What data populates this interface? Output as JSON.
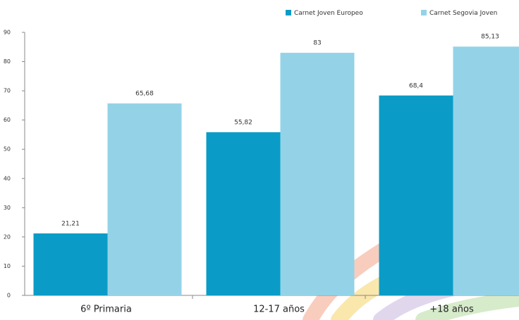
{
  "chart_data": {
    "type": "bar",
    "categories": [
      "6º Primaria",
      "12-17 años",
      "+18 años"
    ],
    "series": [
      {
        "name": "Carnet Joven Europeo",
        "color": "#0a9cc6",
        "values": [
          21.21,
          55.82,
          68.4
        ],
        "value_labels": [
          "21,21",
          "55,82",
          "68,4"
        ]
      },
      {
        "name": "Carnet Segovia Joven",
        "color": "#94d3e7",
        "values": [
          65.68,
          83,
          85.13
        ],
        "value_labels": [
          "65,68",
          "83",
          "85,13"
        ]
      }
    ],
    "ylim": [
      0,
      90
    ],
    "yticks": [
      0,
      10,
      20,
      30,
      40,
      50,
      60,
      70,
      80,
      90
    ],
    "grid": false,
    "legend": "top-right"
  }
}
